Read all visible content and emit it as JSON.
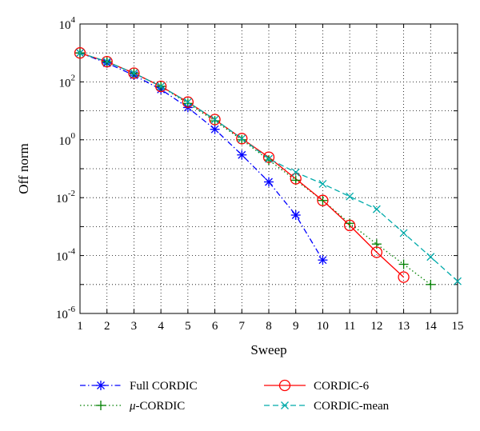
{
  "chart_data": {
    "type": "line",
    "xlabel": "Sweep",
    "ylabel": "Off norm",
    "xlim": [
      1,
      15
    ],
    "ylim_exponents": [
      -6,
      4
    ],
    "yscale": "log",
    "grid": true,
    "x_ticks": [
      "1",
      "2",
      "3",
      "4",
      "5",
      "6",
      "7",
      "8",
      "9",
      "10",
      "11",
      "12",
      "13",
      "14",
      "15"
    ],
    "y_ticks": [
      {
        "base": "10",
        "exp": "4"
      },
      {
        "base": "10",
        "exp": "2"
      },
      {
        "base": "10",
        "exp": "0"
      },
      {
        "base": "10",
        "exp": "-2"
      },
      {
        "base": "10",
        "exp": "-4"
      },
      {
        "base": "10",
        "exp": "-6"
      }
    ],
    "legend_position": "below",
    "series": [
      {
        "name": "Full CORDIC",
        "legend_text": "Full CORDIC",
        "color": "#0000ff",
        "dash": "dashdot",
        "marker": "star",
        "x": [
          1,
          2,
          3,
          4,
          5,
          6,
          7,
          8,
          9,
          10
        ],
        "y": [
          1000,
          450,
          170,
          55,
          13,
          2.3,
          0.3,
          0.035,
          0.0025,
          7e-05
        ]
      },
      {
        "name": "μ-CORDIC",
        "legend_text": "-CORDIC",
        "legend_mu": "μ",
        "color": "#008000",
        "dash": "dotted",
        "marker": "plus",
        "x": [
          1,
          2,
          3,
          4,
          5,
          6,
          7,
          8,
          9,
          10,
          11,
          12,
          13,
          14
        ],
        "y": [
          1000,
          500,
          200,
          70,
          18,
          4.5,
          1.0,
          0.2,
          0.04,
          0.008,
          0.0013,
          0.00025,
          5e-05,
          1e-05
        ]
      },
      {
        "name": "CORDIC-6",
        "legend_text": "CORDIC-6",
        "color": "#ff0000",
        "dash": "solid",
        "marker": "circle",
        "x": [
          1,
          2,
          3,
          4,
          5,
          6,
          7,
          8,
          9,
          10,
          11,
          12,
          13
        ],
        "y": [
          1000,
          500,
          200,
          70,
          20,
          5,
          1.1,
          0.25,
          0.045,
          0.008,
          0.0011,
          0.00013,
          1.8e-05
        ]
      },
      {
        "name": "CORDIC-mean",
        "legend_text": "CORDIC-mean",
        "color": "#00aaaa",
        "dash": "dashed",
        "marker": "x",
        "x": [
          1,
          2,
          3,
          4,
          5,
          6,
          7,
          8,
          9,
          10,
          11,
          12,
          13,
          14,
          15
        ],
        "y": [
          1000,
          500,
          200,
          70,
          20,
          5,
          1.1,
          0.22,
          0.075,
          0.03,
          0.011,
          0.004,
          0.0006,
          9e-05,
          1.3e-05
        ]
      }
    ]
  }
}
